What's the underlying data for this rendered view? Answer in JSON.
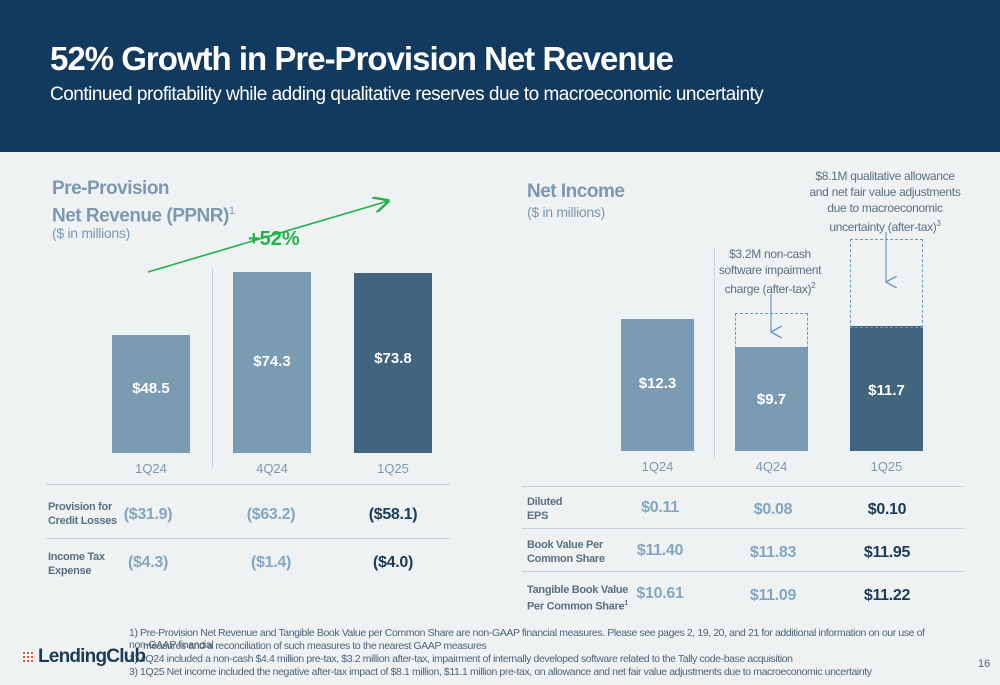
{
  "header": {
    "title": "52% Growth in Pre-Provision Net Revenue",
    "subtitle": "Continued profitability while adding qualitative reserves due to macroeconomic uncertainty"
  },
  "colors": {
    "header_bg": "#123a5e",
    "bar_light": "#7b9bb3",
    "bar_mid": "#7b9bb3",
    "bar_dark": "#41647f",
    "growth_arrow": "#22b24c"
  },
  "ppnr": {
    "title_line1": "Pre-Provision",
    "title_line2": "Net Revenue (PPNR)",
    "title_sup": "1",
    "unit": "($ in millions)",
    "growth_label": "+52%"
  },
  "net_income": {
    "title": "Net Income",
    "unit": "($ in millions)",
    "note_impairment_lines": [
      "$3.2M non-cash",
      "software impairment",
      "charge (after-tax)"
    ],
    "note_impairment_sup": "2",
    "note_allowance_lines": [
      "$8.1M qualitative allowance",
      "and net fair value adjustments",
      "due to macroeconomic",
      "uncertainty (after-tax)"
    ],
    "note_allowance_sup": "3"
  },
  "chart_data": [
    {
      "type": "bar",
      "title": "Pre-Provision Net Revenue (PPNR)",
      "ylabel": "($ in millions)",
      "categories": [
        "1Q24",
        "4Q24",
        "1Q25"
      ],
      "values": [
        48.5,
        74.3,
        73.8
      ],
      "labels": [
        "$48.5",
        "$74.3",
        "$73.8"
      ],
      "ylim": [
        0,
        80
      ]
    },
    {
      "type": "bar",
      "title": "Net Income",
      "ylabel": "($ in millions)",
      "categories": [
        "1Q24",
        "4Q24",
        "1Q25"
      ],
      "values": [
        12.3,
        9.7,
        11.7
      ],
      "labels": [
        "$12.3",
        "$9.7",
        "$11.7"
      ],
      "adjustments": [
        0,
        3.2,
        8.1
      ],
      "ylim": [
        0,
        20
      ]
    }
  ],
  "ppnr_table": {
    "rows": [
      {
        "label_lines": [
          "Provision for",
          "Credit Losses"
        ],
        "values": [
          "($31.9)",
          "($63.2)",
          "($58.1)"
        ]
      },
      {
        "label_lines": [
          "Income Tax",
          "Expense"
        ],
        "values": [
          "($4.3)",
          "($1.4)",
          "($4.0)"
        ]
      }
    ]
  },
  "ni_table": {
    "rows": [
      {
        "label_lines": [
          "Diluted",
          "EPS"
        ],
        "sup": "",
        "values": [
          "$0.11",
          "$0.08",
          "$0.10"
        ]
      },
      {
        "label_lines": [
          "Book Value Per",
          "Common Share"
        ],
        "sup": "",
        "values": [
          "$11.40",
          "$11.83",
          "$11.95"
        ]
      },
      {
        "label_lines": [
          "Tangible Book Value",
          "Per Common Share"
        ],
        "sup": "1",
        "values": [
          "$10.61",
          "$11.09",
          "$11.22"
        ]
      }
    ]
  },
  "footnotes": [
    "1)  Pre-Provision Net Revenue and Tangible Book Value per Common Share are non-GAAP financial measures. Please see pages 2, 19, 20, and 21 for additional information on our use of non-GAAP financial",
    "measures and a reconciliation of such measures to the nearest GAAP measures",
    "2)  4Q24 included a non-cash $4.4 million pre-tax, $3.2 million after-tax, impairment of internally developed software related to the Tally code-base acquisition",
    "3)  1Q25 Net income included the negative after-tax impact of $8.1 million, $11.1 million pre-tax, on allowance and net fair value adjustments due to macroeconomic uncertainty"
  ],
  "logo": {
    "text": "LendingClub"
  },
  "page_number": "16"
}
